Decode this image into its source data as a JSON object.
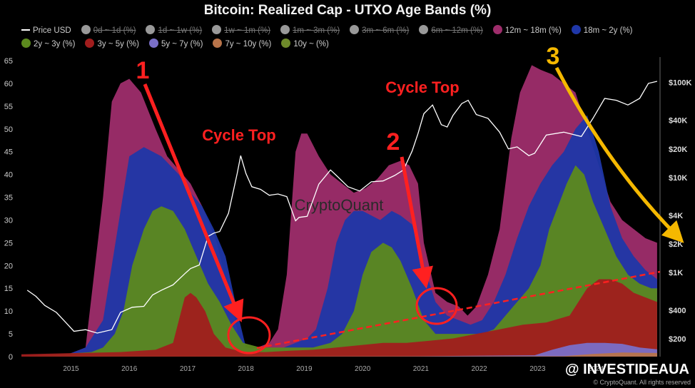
{
  "chart_data": {
    "type": "area",
    "title": "Bitcoin: Realized Cap - UTXO Age Bands (%)",
    "x_ticks": [
      "2015",
      "2016",
      "2017",
      "2018",
      "2019",
      "2020",
      "2021",
      "2022",
      "2023",
      "2024"
    ],
    "y_left": {
      "ticks": [
        0,
        5,
        10,
        15,
        20,
        25,
        30,
        35,
        40,
        45,
        50,
        55,
        60,
        65
      ],
      "range": [
        0,
        65
      ]
    },
    "y_right": {
      "scale": "log",
      "ticks": [
        {
          "value": 200,
          "label": "$200"
        },
        {
          "value": 400,
          "label": "$400"
        },
        {
          "value": 1000,
          "label": "$1K"
        },
        {
          "value": 2000,
          "label": "$2K"
        },
        {
          "value": 4000,
          "label": "$4K"
        },
        {
          "value": 10000,
          "label": "$10K"
        },
        {
          "value": 20000,
          "label": "$20K"
        },
        {
          "value": 40000,
          "label": "$40K"
        },
        {
          "value": 100000,
          "label": "$100K"
        }
      ],
      "range": [
        130,
        170000
      ]
    },
    "x_range": [
      2014.2,
      2025.15
    ],
    "grid": false,
    "legend_position": "top",
    "legend": [
      {
        "name": "Price USD",
        "color": "#ffffff",
        "active": true,
        "marker": "line"
      },
      {
        "name": "0d ~ 1d (%)",
        "color": "#999999",
        "active": false
      },
      {
        "name": "1d ~ 1w (%)",
        "color": "#999999",
        "active": false
      },
      {
        "name": "1w ~ 1m (%)",
        "color": "#999999",
        "active": false
      },
      {
        "name": "1m ~ 3m (%)",
        "color": "#999999",
        "active": false
      },
      {
        "name": "3m ~ 6m (%)",
        "color": "#999999",
        "active": false
      },
      {
        "name": "6m ~ 12m (%)",
        "color": "#999999",
        "active": false
      },
      {
        "name": "12m ~ 18m (%)",
        "color": "#9e2d6b",
        "active": true
      },
      {
        "name": "18m ~ 2y (%)",
        "color": "#1f37a8",
        "active": true
      },
      {
        "name": "2y ~ 3y (%)",
        "color": "#5c8a1e",
        "active": true
      },
      {
        "name": "3y ~ 5y (%)",
        "color": "#a11d1d",
        "active": true
      },
      {
        "name": "5y ~ 7y (%)",
        "color": "#7a6fc8",
        "active": true
      },
      {
        "name": "7y ~ 10y (%)",
        "color": "#b8744a",
        "active": true
      },
      {
        "name": "10y ~ (%)",
        "color": "#6e8a2a",
        "active": true
      }
    ],
    "series": [
      {
        "name": "12m ~ 18m (%)",
        "color": "#9e2d6b",
        "x": [
          2014.2,
          2015.0,
          2015.3,
          2015.6,
          2015.75,
          2015.9,
          2016.05,
          2016.25,
          2016.5,
          2016.7,
          2016.9,
          2017.1,
          2017.3,
          2017.55,
          2017.8,
          2017.95,
          2018.05,
          2018.25,
          2018.45,
          2018.6,
          2018.75,
          2018.9,
          2019.0,
          2019.1,
          2019.3,
          2019.5,
          2019.7,
          2019.9,
          2020.1,
          2020.3,
          2020.5,
          2020.7,
          2020.85,
          2021.0,
          2021.1,
          2021.3,
          2021.5,
          2021.7,
          2021.85,
          2022.0,
          2022.2,
          2022.4,
          2022.6,
          2022.75,
          2022.95,
          2023.1,
          2023.3,
          2023.5,
          2023.7,
          2023.9,
          2024.1,
          2024.3,
          2024.5,
          2024.7,
          2024.9,
          2025.1
        ],
        "values": [
          0,
          0.5,
          2,
          35,
          56,
          60,
          61,
          58,
          50,
          44,
          41,
          38,
          33,
          25,
          12,
          3,
          1.5,
          2,
          3,
          6,
          18,
          45,
          49,
          49,
          44,
          40,
          38,
          36,
          37,
          39,
          42,
          43,
          42,
          38,
          25,
          14,
          12,
          11,
          9,
          11,
          18,
          28,
          48,
          58,
          64,
          63,
          62,
          60,
          58,
          50,
          42,
          34,
          30,
          28,
          26,
          25
        ]
      },
      {
        "name": "18m ~ 2y (%)",
        "color": "#1f37a8",
        "x": [
          2014.2,
          2015.0,
          2015.3,
          2015.6,
          2015.75,
          2015.9,
          2016.05,
          2016.3,
          2016.6,
          2016.9,
          2017.1,
          2017.3,
          2017.5,
          2017.7,
          2017.9,
          2018.05,
          2018.3,
          2018.5,
          2018.7,
          2018.9,
          2019.1,
          2019.25,
          2019.45,
          2019.6,
          2019.75,
          2019.9,
          2020.05,
          2020.2,
          2020.35,
          2020.55,
          2020.7,
          2020.9,
          2021.1,
          2021.3,
          2021.5,
          2021.7,
          2021.9,
          2022.1,
          2022.3,
          2022.5,
          2022.7,
          2022.9,
          2023.1,
          2023.3,
          2023.5,
          2023.7,
          2023.9,
          2024.1,
          2024.3,
          2024.5,
          2024.7,
          2024.9,
          2025.1
        ],
        "values": [
          0,
          0.5,
          2,
          8,
          20,
          32,
          44,
          46,
          44,
          40,
          36,
          33,
          28,
          22,
          10,
          2,
          1.5,
          1.5,
          2,
          3,
          4,
          6,
          15,
          25,
          30,
          32,
          32,
          31,
          30,
          32,
          31,
          29,
          20,
          12,
          9,
          8,
          7,
          8,
          12,
          18,
          26,
          33,
          38,
          42,
          45,
          50,
          53,
          45,
          33,
          26,
          22,
          19,
          17
        ]
      },
      {
        "name": "2y ~ 3y (%)",
        "color": "#5c8a1e",
        "x": [
          2014.2,
          2015.4,
          2015.6,
          2015.8,
          2015.95,
          2016.1,
          2016.3,
          2016.45,
          2016.6,
          2016.8,
          2017.0,
          2017.2,
          2017.4,
          2017.6,
          2017.8,
          2018.0,
          2018.3,
          2018.6,
          2018.9,
          2019.2,
          2019.5,
          2019.7,
          2019.9,
          2020.05,
          2020.2,
          2020.4,
          2020.55,
          2020.7,
          2020.9,
          2021.1,
          2021.3,
          2021.5,
          2021.7,
          2021.9,
          2022.1,
          2022.3,
          2022.5,
          2022.7,
          2022.9,
          2023.1,
          2023.25,
          2023.4,
          2023.55,
          2023.7,
          2023.85,
          2024.0,
          2024.2,
          2024.4,
          2024.6,
          2024.8,
          2025.0,
          2025.1
        ],
        "values": [
          0,
          1,
          2,
          5,
          10,
          20,
          28,
          32,
          33,
          32,
          28,
          22,
          16,
          12,
          7,
          3,
          2,
          2,
          2,
          2,
          3,
          5,
          10,
          18,
          23,
          25,
          24,
          21,
          15,
          8,
          5,
          5,
          5,
          5,
          5,
          6,
          9,
          12,
          15,
          20,
          28,
          33,
          38,
          42,
          40,
          34,
          28,
          22,
          18,
          16,
          15,
          15
        ]
      },
      {
        "name": "3y ~ 5y (%)",
        "color": "#a11d1d",
        "x": [
          2014.2,
          2015.9,
          2016.5,
          2016.8,
          2016.9,
          2017.0,
          2017.1,
          2017.2,
          2017.35,
          2017.5,
          2017.7,
          2018.0,
          2018.4,
          2018.8,
          2019.2,
          2019.6,
          2020.0,
          2020.4,
          2020.8,
          2021.2,
          2021.6,
          2022.0,
          2022.4,
          2022.8,
          2023.2,
          2023.6,
          2023.9,
          2024.1,
          2024.3,
          2024.5,
          2024.7,
          2024.9,
          2025.1
        ],
        "values": [
          0.5,
          1,
          1.5,
          3,
          8,
          13,
          14,
          13,
          10,
          5,
          2,
          1,
          1,
          1.3,
          1.5,
          2,
          2.5,
          3,
          3,
          3.5,
          4,
          5,
          6,
          7,
          7.5,
          9,
          15,
          17,
          17,
          16,
          14,
          13,
          12
        ]
      },
      {
        "name": "5y ~ 7y (%)",
        "color": "#7a6fc8",
        "x": [
          2014.2,
          2019.0,
          2021.0,
          2023.0,
          2023.3,
          2023.6,
          2023.9,
          2024.2,
          2024.5,
          2024.8,
          2025.1
        ],
        "values": [
          0,
          0,
          0.1,
          0.3,
          1.5,
          2.5,
          3,
          3,
          2.8,
          2,
          1.6
        ]
      },
      {
        "name": "7y ~ 10y (%)",
        "color": "#b8744a",
        "x": [
          2014.2,
          2023.5,
          2024.0,
          2024.5,
          2025.1
        ],
        "values": [
          0,
          0.1,
          0.6,
          0.9,
          0.8
        ]
      },
      {
        "name": "Price USD",
        "color": "#ffffff",
        "axis": "right",
        "x": [
          2014.3,
          2014.45,
          2014.6,
          2014.8,
          2015.0,
          2015.1,
          2015.3,
          2015.5,
          2015.75,
          2015.9,
          2016.1,
          2016.3,
          2016.45,
          2016.6,
          2016.8,
          2017.0,
          2017.1,
          2017.25,
          2017.4,
          2017.5,
          2017.6,
          2017.75,
          2017.9,
          2017.96,
          2018.05,
          2018.15,
          2018.3,
          2018.45,
          2018.6,
          2018.75,
          2018.9,
          2018.96,
          2019.1,
          2019.3,
          2019.5,
          2019.6,
          2019.8,
          2020.0,
          2020.2,
          2020.4,
          2020.6,
          2020.75,
          2020.9,
          2021.0,
          2021.1,
          2021.25,
          2021.4,
          2021.5,
          2021.6,
          2021.75,
          2021.86,
          2022.0,
          2022.2,
          2022.4,
          2022.55,
          2022.7,
          2022.9,
          2023.0,
          2023.2,
          2023.5,
          2023.8,
          2024.0,
          2024.2,
          2024.4,
          2024.6,
          2024.8,
          2024.95,
          2025.1
        ],
        "values": [
          650,
          560,
          450,
          380,
          280,
          240,
          250,
          230,
          250,
          380,
          430,
          440,
          580,
          650,
          740,
          970,
          1100,
          1200,
          2400,
          2600,
          2700,
          4200,
          11000,
          17000,
          11000,
          8000,
          7500,
          6500,
          6700,
          6300,
          3500,
          3800,
          3900,
          8500,
          12000,
          10500,
          8000,
          7200,
          9000,
          9200,
          10500,
          12000,
          19000,
          29000,
          47000,
          58000,
          36000,
          34000,
          45000,
          60000,
          65000,
          46000,
          42000,
          30000,
          20000,
          21000,
          17000,
          18000,
          28000,
          30000,
          27000,
          42000,
          68000,
          65000,
          58000,
          68000,
          98000,
          103000
        ]
      }
    ],
    "annotations": [
      {
        "text": "1",
        "color": "#ff2020"
      },
      {
        "text": "Cycle Top",
        "color": "#ff2020"
      },
      {
        "text": "Cycle Top",
        "color": "#ff2020"
      },
      {
        "text": "2",
        "color": "#ff2020"
      },
      {
        "text": "3",
        "color": "#f5b800"
      }
    ],
    "watermark": "CryptoQuant"
  },
  "footer": {
    "brand": "@ INVESTIDEAUA",
    "credit": "© CryptoQuant. All rights reserved"
  }
}
